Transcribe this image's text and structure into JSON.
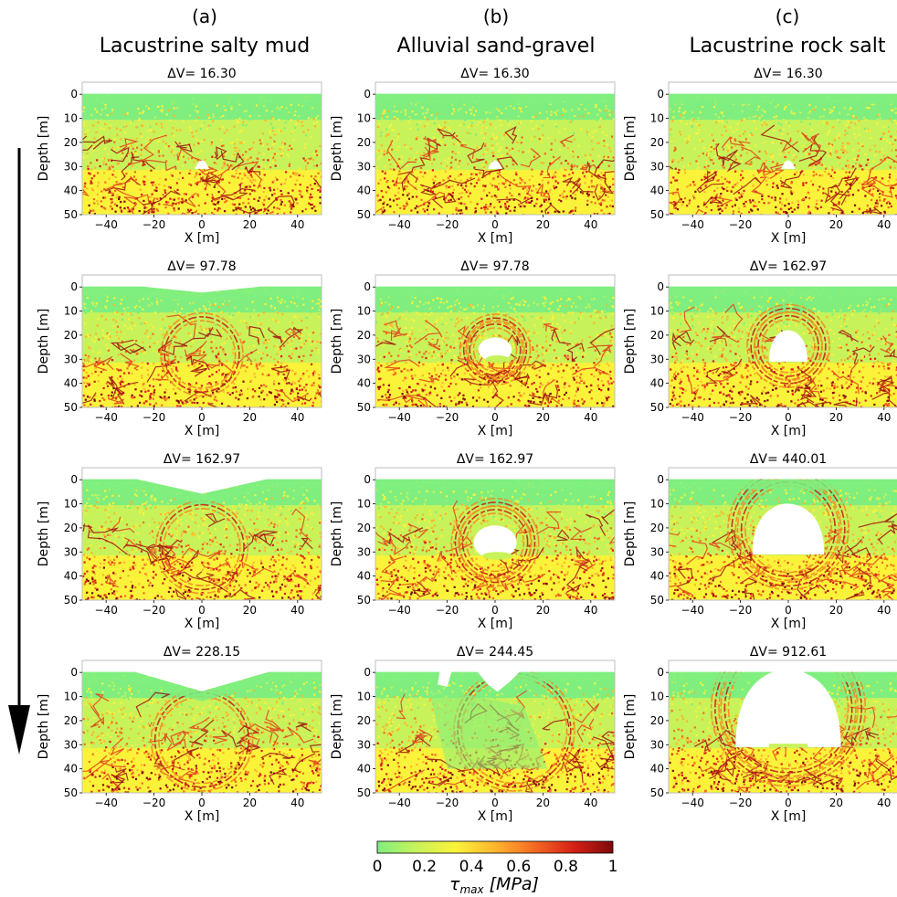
{
  "figure": {
    "columns": [
      {
        "letter": "(a)",
        "title": "Lacustrine salty mud"
      },
      {
        "letter": "(b)",
        "title": "Alluvial sand-gravel"
      },
      {
        "letter": "(c)",
        "title": "Lacustrine rock salt"
      }
    ],
    "colorbar": {
      "ticks": [
        "0",
        "0.2",
        "0.4",
        "0.6",
        "0.8",
        "1"
      ],
      "label_base": "τ",
      "label_sub": "max",
      "label_rest": " [MPa]",
      "colors": [
        "#7fee7f",
        "#c8f25a",
        "#fbf33a",
        "#fdb52e",
        "#f46a22",
        "#d62017",
        "#7d0a0a"
      ]
    }
  },
  "chart_data": [
    {
      "type": "heatmap",
      "column": 0,
      "row": 0,
      "title": "ΔV= 16.30",
      "xlabel": "X [m]",
      "ylabel": "Depth [m]",
      "xlim": [
        -50,
        50
      ],
      "ylim": [
        50,
        -5
      ],
      "xticks": [
        "-40",
        "-20",
        "0",
        "20",
        "40"
      ],
      "yticks": [
        "0",
        "10",
        "20",
        "30",
        "40",
        "50"
      ],
      "cavity": {
        "kind": "small",
        "cx": 0,
        "top": 27,
        "bottom": 31,
        "halfwidth": 3
      }
    },
    {
      "type": "heatmap",
      "column": 1,
      "row": 0,
      "title": "ΔV= 16.30",
      "xlabel": "X [m]",
      "ylabel": "Depth [m]",
      "xlim": [
        -50,
        50
      ],
      "ylim": [
        50,
        -5
      ],
      "xticks": [
        "-40",
        "-20",
        "0",
        "20",
        "40"
      ],
      "yticks": [
        "0",
        "10",
        "20",
        "30",
        "40",
        "50"
      ],
      "cavity": {
        "kind": "small",
        "cx": 0,
        "top": 27,
        "bottom": 31,
        "halfwidth": 3
      }
    },
    {
      "type": "heatmap",
      "column": 2,
      "row": 0,
      "title": "ΔV= 16.30",
      "xlabel": "X [m]",
      "ylabel": "Depth [m]",
      "xlim": [
        -50,
        50
      ],
      "ylim": [
        50,
        -5
      ],
      "xticks": [
        "-40",
        "-20",
        "0",
        "20",
        "40"
      ],
      "yticks": [
        "0",
        "10",
        "20",
        "30",
        "40",
        "50"
      ],
      "cavity": {
        "kind": "small",
        "cx": 0,
        "top": 27,
        "bottom": 31,
        "halfwidth": 3
      }
    },
    {
      "type": "heatmap",
      "column": 0,
      "row": 1,
      "title": "ΔV= 97.78",
      "xlabel": "X [m]",
      "ylabel": "Depth [m]",
      "xlim": [
        -50,
        50
      ],
      "ylim": [
        50,
        -5
      ],
      "xticks": [
        "-40",
        "-20",
        "0",
        "20",
        "40"
      ],
      "yticks": [
        "0",
        "10",
        "20",
        "30",
        "40",
        "50"
      ],
      "cavity": {
        "kind": "sag",
        "depth": 2.5,
        "halfwidth": 25,
        "rings": [
          14
        ]
      }
    },
    {
      "type": "heatmap",
      "column": 1,
      "row": 1,
      "title": "ΔV= 97.78",
      "xlabel": "X [m]",
      "ylabel": "Depth [m]",
      "xlim": [
        -50,
        50
      ],
      "ylim": [
        50,
        -5
      ],
      "xticks": [
        "-40",
        "-20",
        "0",
        "20",
        "40"
      ],
      "yticks": [
        "0",
        "10",
        "20",
        "30",
        "40",
        "50"
      ],
      "cavity": {
        "kind": "round",
        "cx": 0,
        "cy": 26,
        "rx": 7,
        "ry": 5,
        "rings": [
          9,
          11.5
        ]
      }
    },
    {
      "type": "heatmap",
      "column": 2,
      "row": 1,
      "title": "ΔV= 162.97",
      "xlabel": "X [m]",
      "ylabel": "Depth [m]",
      "xlim": [
        -50,
        50
      ],
      "ylim": [
        50,
        -5
      ],
      "xticks": [
        "-40",
        "-20",
        "0",
        "20",
        "40"
      ],
      "yticks": [
        "0",
        "10",
        "20",
        "30",
        "40",
        "50"
      ],
      "cavity": {
        "kind": "dome",
        "cx": 0,
        "top": 18,
        "bottom": 31,
        "halfwidth": 8,
        "rings": [
          11,
          14
        ]
      }
    },
    {
      "type": "heatmap",
      "column": 0,
      "row": 2,
      "title": "ΔV= 162.97",
      "xlabel": "X [m]",
      "ylabel": "Depth [m]",
      "xlim": [
        -50,
        50
      ],
      "ylim": [
        50,
        -5
      ],
      "xticks": [
        "-40",
        "-20",
        "0",
        "20",
        "40"
      ],
      "yticks": [
        "0",
        "10",
        "20",
        "30",
        "40",
        "50"
      ],
      "cavity": {
        "kind": "sag",
        "depth": 6,
        "halfwidth": 27,
        "rings": [
          16
        ]
      }
    },
    {
      "type": "heatmap",
      "column": 1,
      "row": 2,
      "title": "ΔV= 162.97",
      "xlabel": "X [m]",
      "ylabel": "Depth [m]",
      "xlim": [
        -50,
        50
      ],
      "ylim": [
        50,
        -5
      ],
      "xticks": [
        "-40",
        "-20",
        "0",
        "20",
        "40"
      ],
      "yticks": [
        "0",
        "10",
        "20",
        "30",
        "40",
        "50"
      ],
      "cavity": {
        "kind": "round",
        "cx": 0,
        "cy": 26,
        "rx": 9,
        "ry": 7,
        "rings": [
          12,
          15
        ]
      }
    },
    {
      "type": "heatmap",
      "column": 2,
      "row": 2,
      "title": "ΔV= 440.01",
      "xlabel": "X [m]",
      "ylabel": "Depth [m]",
      "xlim": [
        -50,
        50
      ],
      "ylim": [
        50,
        -5
      ],
      "xticks": [
        "-40",
        "-20",
        "0",
        "20",
        "40"
      ],
      "yticks": [
        "0",
        "10",
        "20",
        "30",
        "40",
        "50"
      ],
      "cavity": {
        "kind": "dome",
        "cx": 0,
        "top": 10,
        "bottom": 31,
        "halfwidth": 15,
        "rings": [
          18,
          22
        ]
      }
    },
    {
      "type": "heatmap",
      "column": 0,
      "row": 3,
      "title": "ΔV= 228.15",
      "xlabel": "X [m]",
      "ylabel": "Depth [m]",
      "xlim": [
        -50,
        50
      ],
      "ylim": [
        50,
        -5
      ],
      "xticks": [
        "-40",
        "-20",
        "0",
        "20",
        "40"
      ],
      "yticks": [
        "0",
        "10",
        "20",
        "30",
        "40",
        "50"
      ],
      "cavity": {
        "kind": "sag",
        "depth": 8,
        "halfwidth": 28,
        "rings": [
          18
        ]
      }
    },
    {
      "type": "heatmap",
      "column": 1,
      "row": 3,
      "title": "ΔV= 244.45",
      "xlabel": "X [m]",
      "ylabel": "Depth [m]",
      "xlim": [
        -50,
        50
      ],
      "ylim": [
        50,
        -5
      ],
      "xticks": [
        "-40",
        "-20",
        "0",
        "20",
        "40"
      ],
      "yticks": [
        "0",
        "10",
        "20",
        "30",
        "40",
        "50"
      ],
      "cavity": {
        "kind": "collapse",
        "rings": [
          22
        ]
      }
    },
    {
      "type": "heatmap",
      "column": 2,
      "row": 3,
      "title": "ΔV= 912.61",
      "xlabel": "X [m]",
      "ylabel": "Depth [m]",
      "xlim": [
        -50,
        50
      ],
      "ylim": [
        50,
        -5
      ],
      "xticks": [
        "-40",
        "-20",
        "0",
        "20",
        "40"
      ],
      "yticks": [
        "0",
        "10",
        "20",
        "30",
        "40",
        "50"
      ],
      "cavity": {
        "kind": "bigdome",
        "cx": 0,
        "top": -1,
        "bottom": 31,
        "halfwidth": 22,
        "rings": [
          25,
          29
        ]
      }
    }
  ]
}
